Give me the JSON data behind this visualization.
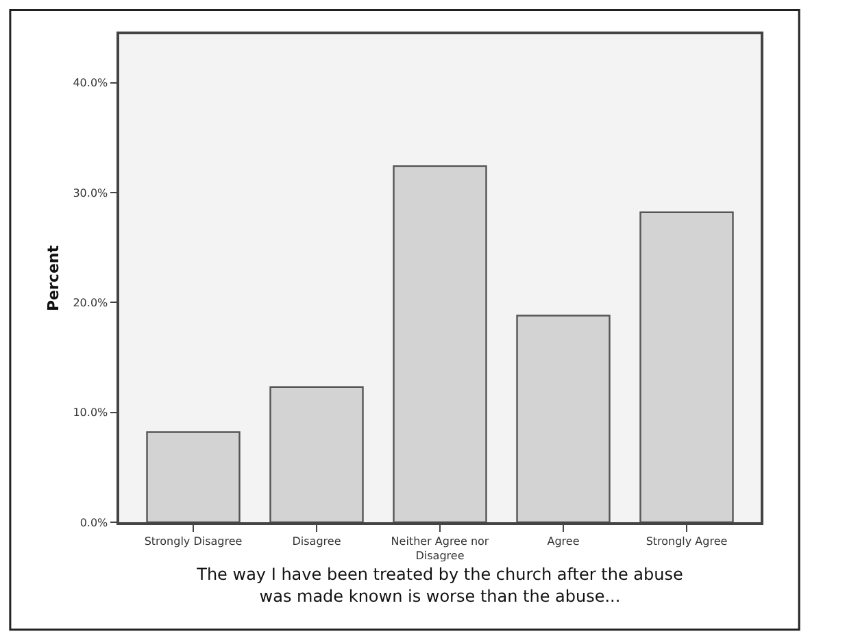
{
  "chart_data": {
    "type": "bar",
    "xlabel": "The way I have been treated by the church after the abuse was made known is worse than the abuse...",
    "ylabel": "Percent",
    "categories": [
      "Strongly Disagree",
      "Disagree",
      "Neither Agree nor Disagree",
      "Agree",
      "Strongly Agree"
    ],
    "values": [
      8.2,
      12.3,
      32.4,
      18.8,
      28.2
    ],
    "color": "#d3d3d3",
    "ylim": [
      0,
      44.4
    ],
    "yticks": [
      {
        "value": 0,
        "label": "0.0%"
      },
      {
        "value": 10,
        "label": "10.0%"
      },
      {
        "value": 20,
        "label": "20.0%"
      },
      {
        "value": 30,
        "label": "30.0%"
      },
      {
        "value": 40,
        "label": "40.0%"
      }
    ],
    "grid": false
  }
}
